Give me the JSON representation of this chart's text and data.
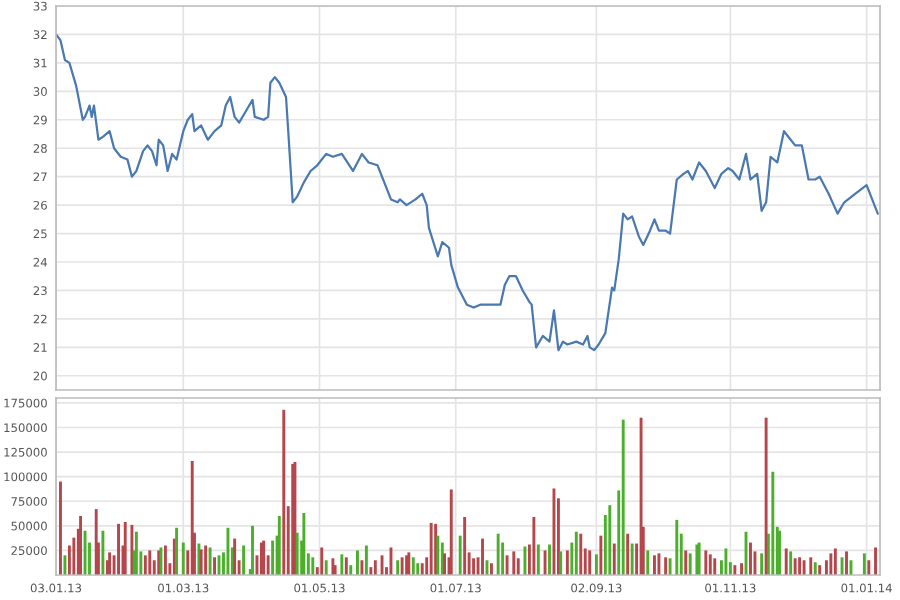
{
  "chart_data": [
    {
      "type": "line",
      "tick_labels": "y",
      "grid": true,
      "xlim": [
        "2013-01-03",
        "2014-01-07"
      ],
      "xticks": [
        {
          "value": "2013-01-03",
          "label": null
        },
        {
          "value": "2013-03-01",
          "label": null
        },
        {
          "value": "2013-05-01",
          "label": null
        },
        {
          "value": "2013-07-01",
          "label": null
        },
        {
          "value": "2013-09-02",
          "label": null
        },
        {
          "value": "2013-11-01",
          "label": null
        },
        {
          "value": "2014-01-01",
          "label": null
        }
      ],
      "ylim": [
        19.5,
        33
      ],
      "yticks": [
        20,
        21,
        22,
        23,
        24,
        25,
        26,
        27,
        28,
        29,
        30,
        31,
        32,
        33
      ],
      "x": [
        "2013-01-03",
        "2013-01-05",
        "2013-01-07",
        "2013-01-09",
        "2013-01-12",
        "2013-01-15",
        "2013-01-16",
        "2013-01-18",
        "2013-01-19",
        "2013-01-20",
        "2013-01-22",
        "2013-01-24",
        "2013-01-27",
        "2013-01-29",
        "2013-02-01",
        "2013-02-04",
        "2013-02-06",
        "2013-02-08",
        "2013-02-11",
        "2013-02-13",
        "2013-02-15",
        "2013-02-17",
        "2013-02-18",
        "2013-02-20",
        "2013-02-22",
        "2013-02-24",
        "2013-02-26",
        "2013-03-01",
        "2013-03-03",
        "2013-03-05",
        "2013-03-06",
        "2013-03-09",
        "2013-03-12",
        "2013-03-15",
        "2013-03-18",
        "2013-03-20",
        "2013-03-22",
        "2013-03-24",
        "2013-03-26",
        "2013-03-29",
        "2013-04-01",
        "2013-04-02",
        "2013-04-06",
        "2013-04-08",
        "2013-04-09",
        "2013-04-11",
        "2013-04-13",
        "2013-04-16",
        "2013-04-17",
        "2013-04-19",
        "2013-04-21",
        "2013-04-24",
        "2013-04-27",
        "2013-04-30",
        "2013-05-04",
        "2013-05-07",
        "2013-05-11",
        "2013-05-16",
        "2013-05-20",
        "2013-05-23",
        "2013-05-27",
        "2013-05-30",
        "2013-06-02",
        "2013-06-05",
        "2013-06-06",
        "2013-06-09",
        "2013-06-13",
        "2013-06-16",
        "2013-06-18",
        "2013-06-19",
        "2013-06-23",
        "2013-06-25",
        "2013-06-28",
        "2013-06-29",
        "2013-07-02",
        "2013-07-06",
        "2013-07-09",
        "2013-07-12",
        "2013-07-15",
        "2013-07-21",
        "2013-07-23",
        "2013-07-25",
        "2013-07-28",
        "2013-07-31",
        "2013-08-03",
        "2013-08-04",
        "2013-08-06",
        "2013-08-09",
        "2013-08-12",
        "2013-08-14",
        "2013-08-16",
        "2013-08-18",
        "2013-08-20",
        "2013-08-24",
        "2013-08-27",
        "2013-08-29",
        "2013-08-30",
        "2013-09-01",
        "2013-09-03",
        "2013-09-06",
        "2013-09-09",
        "2013-09-10",
        "2013-09-12",
        "2013-09-14",
        "2013-09-16",
        "2013-09-18",
        "2013-09-21",
        "2013-09-23",
        "2013-09-26",
        "2013-09-28",
        "2013-09-30",
        "2013-10-03",
        "2013-10-05",
        "2013-10-08",
        "2013-10-11",
        "2013-10-13",
        "2013-10-15",
        "2013-10-18",
        "2013-10-21",
        "2013-10-25",
        "2013-10-28",
        "2013-10-31",
        "2013-11-02",
        "2013-11-05",
        "2013-11-08",
        "2013-11-10",
        "2013-11-13",
        "2013-11-15",
        "2013-11-17",
        "2013-11-19",
        "2013-11-22",
        "2013-11-25",
        "2013-11-28",
        "2013-11-30",
        "2013-12-03",
        "2013-12-06",
        "2013-12-09",
        "2013-12-11",
        "2013-12-15",
        "2013-12-19",
        "2013-12-22",
        "2013-12-27",
        "2014-01-01",
        "2014-01-05",
        "2014-01-06"
      ],
      "series": [
        {
          "color": "#4a78b0",
          "values": [
            32.0,
            31.8,
            31.1,
            31.0,
            30.2,
            29.0,
            29.1,
            29.5,
            29.1,
            29.5,
            28.3,
            28.4,
            28.6,
            28.0,
            27.7,
            27.6,
            27.0,
            27.2,
            27.9,
            28.1,
            27.9,
            27.4,
            28.3,
            28.1,
            27.2,
            27.8,
            27.6,
            28.6,
            29.0,
            29.2,
            28.6,
            28.8,
            28.3,
            28.6,
            28.8,
            29.5,
            29.8,
            29.1,
            28.9,
            29.3,
            29.7,
            29.1,
            29.0,
            29.1,
            30.3,
            30.5,
            30.3,
            29.8,
            28.6,
            26.1,
            26.3,
            26.8,
            27.2,
            27.4,
            27.8,
            27.7,
            27.8,
            27.2,
            27.8,
            27.5,
            27.4,
            26.8,
            26.2,
            26.1,
            26.2,
            26.0,
            26.2,
            26.4,
            26.0,
            25.2,
            24.2,
            24.7,
            24.5,
            23.9,
            23.1,
            22.5,
            22.4,
            22.5,
            22.5,
            22.5,
            23.2,
            23.5,
            23.5,
            23.0,
            22.6,
            22.5,
            21.0,
            21.4,
            21.2,
            22.3,
            20.9,
            21.2,
            21.1,
            21.2,
            21.1,
            21.4,
            21.0,
            20.9,
            21.1,
            21.5,
            23.1,
            23.0,
            24.1,
            25.7,
            25.5,
            25.6,
            24.9,
            24.6,
            25.1,
            25.5,
            25.1,
            25.1,
            25.0,
            26.9,
            27.1,
            27.2,
            26.9,
            27.5,
            27.2,
            26.6,
            27.1,
            27.3,
            27.2,
            26.9,
            27.8,
            26.9,
            27.1,
            25.8,
            26.1,
            27.7,
            27.5,
            28.6,
            28.3,
            28.1,
            28.1,
            26.9,
            26.9,
            27.0,
            26.4,
            25.7,
            26.1,
            26.4,
            26.7,
            25.9,
            25.7
          ]
        }
      ]
    },
    {
      "type": "bar",
      "grid": true,
      "xlim": [
        "2013-01-03",
        "2014-01-07"
      ],
      "xticks": [
        {
          "value": "2013-01-03",
          "label": "03.01.13"
        },
        {
          "value": "2013-03-01",
          "label": "01.03.13"
        },
        {
          "value": "2013-05-01",
          "label": "01.05.13"
        },
        {
          "value": "2013-07-01",
          "label": "01.07.13"
        },
        {
          "value": "2013-09-02",
          "label": "02.09.13"
        },
        {
          "value": "2013-11-01",
          "label": "01.11.13"
        },
        {
          "value": "2014-01-01",
          "label": "01.01.14"
        }
      ],
      "ylim": [
        0,
        180000
      ],
      "yticks": [
        25000,
        50000,
        75000,
        100000,
        125000,
        150000,
        175000
      ],
      "x": [
        "2013-01-05",
        "2013-01-07",
        "2013-01-09",
        "2013-01-11",
        "2013-01-13",
        "2013-01-14",
        "2013-01-16",
        "2013-01-18",
        "2013-01-21",
        "2013-01-22",
        "2013-01-24",
        "2013-01-26",
        "2013-01-27",
        "2013-01-29",
        "2013-01-31",
        "2013-02-02",
        "2013-02-03",
        "2013-02-06",
        "2013-02-07",
        "2013-02-08",
        "2013-02-10",
        "2013-02-12",
        "2013-02-14",
        "2013-02-16",
        "2013-02-18",
        "2013-02-19",
        "2013-02-21",
        "2013-02-23",
        "2013-02-25",
        "2013-02-26",
        "2013-03-01",
        "2013-03-03",
        "2013-03-05",
        "2013-03-06",
        "2013-03-08",
        "2013-03-09",
        "2013-03-11",
        "2013-03-13",
        "2013-03-15",
        "2013-03-17",
        "2013-03-19",
        "2013-03-21",
        "2013-03-23",
        "2013-03-24",
        "2013-03-26",
        "2013-03-28",
        "2013-03-31",
        "2013-04-01",
        "2013-04-03",
        "2013-04-05",
        "2013-04-06",
        "2013-04-08",
        "2013-04-10",
        "2013-04-12",
        "2013-04-13",
        "2013-04-15",
        "2013-04-17",
        "2013-04-19",
        "2013-04-20",
        "2013-04-21",
        "2013-04-23",
        "2013-04-24",
        "2013-04-26",
        "2013-04-28",
        "2013-04-30",
        "2013-05-02",
        "2013-05-04",
        "2013-05-07",
        "2013-05-08",
        "2013-05-11",
        "2013-05-13",
        "2013-05-15",
        "2013-05-18",
        "2013-05-20",
        "2013-05-22",
        "2013-05-24",
        "2013-05-26",
        "2013-05-29",
        "2013-05-31",
        "2013-06-02",
        "2013-06-05",
        "2013-06-07",
        "2013-06-09",
        "2013-06-10",
        "2013-06-12",
        "2013-06-14",
        "2013-06-16",
        "2013-06-18",
        "2013-06-20",
        "2013-06-22",
        "2013-06-23",
        "2013-06-25",
        "2013-06-26",
        "2013-06-28",
        "2013-06-29",
        "2013-07-03",
        "2013-07-05",
        "2013-07-07",
        "2013-07-09",
        "2013-07-11",
        "2013-07-13",
        "2013-07-15",
        "2013-07-17",
        "2013-07-20",
        "2013-07-22",
        "2013-07-24",
        "2013-07-27",
        "2013-07-29",
        "2013-08-01",
        "2013-08-03",
        "2013-08-05",
        "2013-08-07",
        "2013-08-10",
        "2013-08-12",
        "2013-08-14",
        "2013-08-16",
        "2013-08-17",
        "2013-08-20",
        "2013-08-22",
        "2013-08-24",
        "2013-08-26",
        "2013-08-28",
        "2013-08-30",
        "2013-09-02",
        "2013-09-04",
        "2013-09-06",
        "2013-09-08",
        "2013-09-10",
        "2013-09-12",
        "2013-09-14",
        "2013-09-16",
        "2013-09-18",
        "2013-09-20",
        "2013-09-22",
        "2013-09-23",
        "2013-09-25",
        "2013-09-28",
        "2013-09-30",
        "2013-10-03",
        "2013-10-05",
        "2013-10-08",
        "2013-10-10",
        "2013-10-12",
        "2013-10-14",
        "2013-10-17",
        "2013-10-18",
        "2013-10-21",
        "2013-10-23",
        "2013-10-25",
        "2013-10-28",
        "2013-10-30",
        "2013-11-01",
        "2013-11-03",
        "2013-11-06",
        "2013-11-08",
        "2013-11-10",
        "2013-11-12",
        "2013-11-15",
        "2013-11-17",
        "2013-11-18",
        "2013-11-20",
        "2013-11-22",
        "2013-11-23",
        "2013-11-26",
        "2013-11-28",
        "2013-11-30",
        "2013-12-02",
        "2013-12-04",
        "2013-12-07",
        "2013-12-09",
        "2013-12-11",
        "2013-12-14",
        "2013-12-16",
        "2013-12-18",
        "2013-12-21",
        "2013-12-23",
        "2013-12-25",
        "2013-12-31",
        "2014-01-02",
        "2014-01-05"
      ],
      "values": [
        95000,
        20000,
        30000,
        38000,
        47000,
        60000,
        45000,
        33000,
        67000,
        33000,
        45000,
        15000,
        23000,
        20000,
        52000,
        30000,
        54000,
        51000,
        25000,
        44000,
        24000,
        20000,
        25000,
        15000,
        25000,
        28000,
        30000,
        12000,
        37000,
        48000,
        33000,
        25000,
        116000,
        43000,
        32000,
        26000,
        30000,
        28000,
        18000,
        20000,
        23000,
        48000,
        28000,
        37000,
        15000,
        30000,
        6000,
        50000,
        20000,
        33000,
        35000,
        20000,
        35000,
        40000,
        60000,
        168000,
        70000,
        113000,
        115000,
        43000,
        35000,
        63000,
        22000,
        18000,
        8000,
        28000,
        15000,
        17000,
        10000,
        21000,
        18000,
        10000,
        25000,
        15000,
        30000,
        8000,
        15000,
        20000,
        8000,
        28000,
        15000,
        18000,
        20000,
        23000,
        18000,
        12000,
        12000,
        18000,
        53000,
        52000,
        40000,
        33000,
        22000,
        18000,
        87000,
        40000,
        59000,
        23000,
        17000,
        18000,
        37000,
        15000,
        12000,
        42000,
        33000,
        20000,
        24000,
        17000,
        29000,
        31000,
        59000,
        31000,
        25000,
        31000,
        88000,
        78000,
        24000,
        25000,
        33000,
        44000,
        42000,
        27000,
        25000,
        21000,
        40000,
        61000,
        71000,
        32000,
        86000,
        158000,
        42000,
        32000,
        32000,
        160000,
        49000,
        25000,
        20000,
        22000,
        18000,
        17000,
        56000,
        42000,
        25000,
        22000,
        31000,
        33000,
        25000,
        21000,
        17000,
        15000,
        27000,
        13000,
        10000,
        12000,
        44000,
        33000,
        24000,
        22000,
        160000,
        42000,
        105000,
        49000,
        45000,
        27000,
        24000,
        17000,
        18000,
        15000,
        18000,
        13000,
        10000,
        15000,
        22000,
        27000,
        18000,
        24000,
        15000,
        22000,
        15000,
        28000
      ],
      "colors": [
        "#b5464b",
        "#4caf2c",
        "#b5464b",
        "#b5464b",
        "#b5464b",
        "#b5464b",
        "#4caf2c",
        "#4caf2c",
        "#b5464b",
        "#b5464b",
        "#4caf2c",
        "#b5464b",
        "#b5464b",
        "#b5464b",
        "#b5464b",
        "#b5464b",
        "#b5464b",
        "#b5464b",
        "#4caf2c",
        "#4caf2c",
        "#4caf2c",
        "#b5464b",
        "#b5464b",
        "#b5464b",
        "#b5464b",
        "#4caf2c",
        "#b5464b",
        "#b5464b",
        "#b5464b",
        "#4caf2c",
        "#4caf2c",
        "#b5464b",
        "#b5464b",
        "#b5464b",
        "#4caf2c",
        "#b5464b",
        "#b5464b",
        "#4caf2c",
        "#b5464b",
        "#4caf2c",
        "#4caf2c",
        "#4caf2c",
        "#4caf2c",
        "#b5464b",
        "#b5464b",
        "#4caf2c",
        "#4caf2c",
        "#4caf2c",
        "#b5464b",
        "#b5464b",
        "#b5464b",
        "#b5464b",
        "#4caf2c",
        "#4caf2c",
        "#4caf2c",
        "#b5464b",
        "#b5464b",
        "#b5464b",
        "#b5464b",
        "#4caf2c",
        "#4caf2c",
        "#4caf2c",
        "#4caf2c",
        "#4caf2c",
        "#b5464b",
        "#b5464b",
        "#4caf2c",
        "#b5464b",
        "#b5464b",
        "#4caf2c",
        "#b5464b",
        "#4caf2c",
        "#4caf2c",
        "#b5464b",
        "#4caf2c",
        "#b5464b",
        "#b5464b",
        "#b5464b",
        "#b5464b",
        "#b5464b",
        "#4caf2c",
        "#b5464b",
        "#b5464b",
        "#b5464b",
        "#4caf2c",
        "#4caf2c",
        "#b5464b",
        "#b5464b",
        "#b5464b",
        "#b5464b",
        "#4caf2c",
        "#4caf2c",
        "#b5464b",
        "#b5464b",
        "#b5464b",
        "#4caf2c",
        "#b5464b",
        "#b5464b",
        "#b5464b",
        "#b5464b",
        "#b5464b",
        "#4caf2c",
        "#b5464b",
        "#4caf2c",
        "#4caf2c",
        "#b5464b",
        "#b5464b",
        "#b5464b",
        "#4caf2c",
        "#b5464b",
        "#b5464b",
        "#4caf2c",
        "#b5464b",
        "#4caf2c",
        "#b5464b",
        "#b5464b",
        "#4caf2c",
        "#b5464b",
        "#4caf2c",
        "#4caf2c",
        "#b5464b",
        "#b5464b",
        "#b5464b",
        "#4caf2c",
        "#b5464b",
        "#4caf2c",
        "#4caf2c",
        "#b5464b",
        "#4caf2c",
        "#4caf2c",
        "#b5464b",
        "#4caf2c",
        "#b5464b",
        "#b5464b",
        "#b5464b",
        "#4caf2c",
        "#b5464b",
        "#b5464b",
        "#b5464b",
        "#4caf2c",
        "#4caf2c",
        "#4caf2c",
        "#b5464b",
        "#4caf2c",
        "#4caf2c",
        "#4caf2c",
        "#b5464b",
        "#b5464b",
        "#b5464b",
        "#4caf2c",
        "#4caf2c",
        "#4caf2c",
        "#b5464b",
        "#b5464b",
        "#4caf2c",
        "#b5464b",
        "#b5464b",
        "#4caf2c",
        "#b5464b",
        "#4caf2c",
        "#4caf2c",
        "#4caf2c",
        "#4caf2c",
        "#b5464b",
        "#4caf2c",
        "#b5464b",
        "#b5464b",
        "#b5464b",
        "#b5464b",
        "#4caf2c",
        "#b5464b",
        "#b5464b",
        "#b5464b",
        "#b5464b",
        "#4caf2c",
        "#b5464b",
        "#4caf2c",
        "#4caf2c",
        "#b5464b",
        "#b5464b"
      ]
    }
  ]
}
